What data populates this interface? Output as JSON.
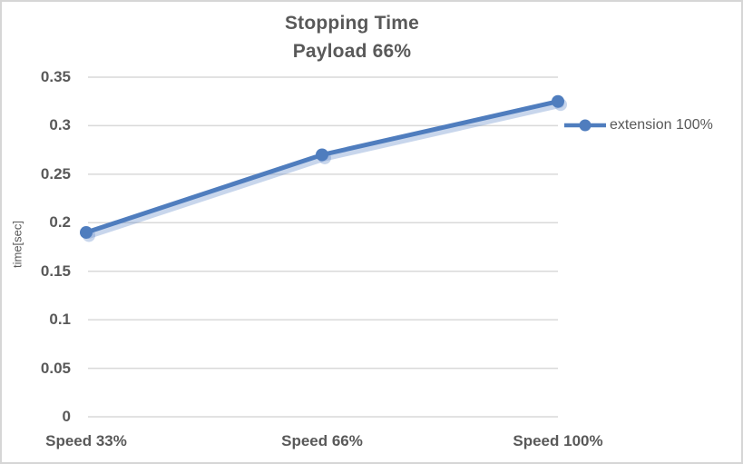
{
  "title": {
    "line1": "Stopping Time",
    "line2": "Payload 66%"
  },
  "y_axis_title": "time[sec]",
  "legend": {
    "label": "extension 100%"
  },
  "colors": {
    "accent": "#4f7dbe",
    "shadow": "rgba(111,148,205,0.38)",
    "gridline": "#d9d9d9",
    "text": "#595959",
    "frame_border": "#d6d6d6",
    "background": "#ffffff"
  },
  "chart_data": {
    "type": "line",
    "title": "Stopping Time",
    "subtitle": "Payload 66%",
    "categories": [
      "Speed 33%",
      "Speed 66%",
      "Speed 100%"
    ],
    "series": [
      {
        "name": "extension 100%",
        "values": [
          0.19,
          0.27,
          0.325
        ]
      }
    ],
    "xlabel": "",
    "ylabel": "time[sec]",
    "ylim": [
      0,
      0.35
    ],
    "yticks": [
      0,
      0.05,
      0.1,
      0.15,
      0.2,
      0.25,
      0.3,
      0.35
    ],
    "ytick_labels": [
      "0",
      "0.05",
      "0.1",
      "0.15",
      "0.2",
      "0.25",
      "0.3",
      "0.35"
    ],
    "grid": true,
    "legend_position": "right",
    "marker": "circle"
  }
}
